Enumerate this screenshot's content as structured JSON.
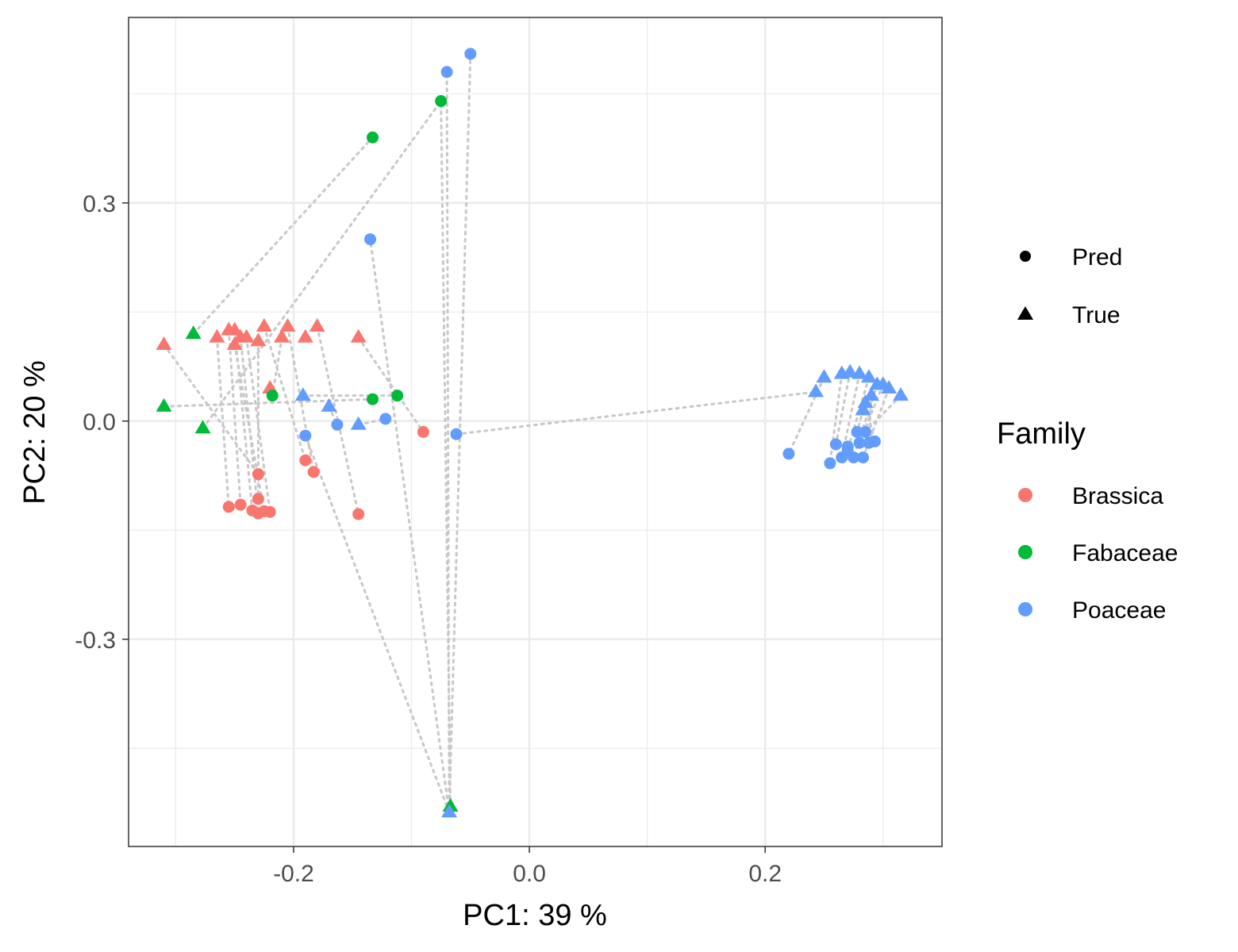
{
  "chart_data": {
    "type": "scatter",
    "xlabel": "PC1: 39 %",
    "ylabel": "PC2: 20 %",
    "xlim": [
      -0.34,
      0.35
    ],
    "ylim": [
      -0.585,
      0.555
    ],
    "x_ticks": [
      -0.2,
      0.0,
      0.2
    ],
    "y_ticks": [
      -0.3,
      0.0,
      0.3
    ],
    "x_tick_labels": [
      "-0.2",
      "0.0",
      "0.2"
    ],
    "y_tick_labels": [
      "-0.3",
      "0.0",
      "0.3"
    ],
    "grid": true,
    "legend_position": "right",
    "shape_legend": {
      "title": "",
      "entries": [
        {
          "label": "Pred",
          "shape": "circle"
        },
        {
          "label": "True",
          "shape": "triangle"
        }
      ]
    },
    "color_legend": {
      "title": "Family",
      "entries": [
        {
          "label": "Brassica",
          "color": "#F8766D"
        },
        {
          "label": "Fabaceae",
          "color": "#00BA38"
        },
        {
          "label": "Poaceae",
          "color": "#619CFF"
        }
      ]
    },
    "connector_color": "#c8c8c8",
    "series": [
      {
        "family": "Brassica",
        "type": "True",
        "color": "#F8766D",
        "shape": "triangle",
        "points": [
          [
            -0.31,
            0.105
          ],
          [
            -0.265,
            0.115
          ],
          [
            -0.255,
            0.125
          ],
          [
            -0.25,
            0.125
          ],
          [
            -0.245,
            0.115
          ],
          [
            -0.25,
            0.105
          ],
          [
            -0.24,
            0.115
          ],
          [
            -0.23,
            0.11
          ],
          [
            -0.225,
            0.13
          ],
          [
            -0.21,
            0.115
          ],
          [
            -0.205,
            0.13
          ],
          [
            -0.19,
            0.115
          ],
          [
            -0.18,
            0.13
          ],
          [
            -0.145,
            0.115
          ],
          [
            -0.22,
            0.045
          ]
        ]
      },
      {
        "family": "Brassica",
        "type": "Pred",
        "color": "#F8766D",
        "shape": "circle",
        "points": [
          [
            -0.23,
            -0.073
          ],
          [
            -0.255,
            -0.118
          ],
          [
            -0.245,
            -0.115
          ],
          [
            -0.235,
            -0.123
          ],
          [
            -0.23,
            -0.127
          ],
          [
            -0.225,
            -0.124
          ],
          [
            -0.22,
            -0.125
          ],
          [
            -0.23,
            -0.107
          ],
          [
            -0.19,
            -0.054
          ],
          [
            -0.183,
            -0.07
          ],
          [
            -0.145,
            -0.128
          ],
          [
            -0.09,
            -0.015
          ]
        ]
      },
      {
        "family": "Fabaceae",
        "type": "True",
        "color": "#00BA38",
        "shape": "triangle",
        "points": [
          [
            -0.31,
            0.02
          ],
          [
            -0.285,
            0.12
          ],
          [
            -0.277,
            -0.01
          ],
          [
            -0.067,
            -0.53
          ]
        ]
      },
      {
        "family": "Fabaceae",
        "type": "Pred",
        "color": "#00BA38",
        "shape": "circle",
        "points": [
          [
            -0.133,
            0.39
          ],
          [
            -0.075,
            0.44
          ],
          [
            -0.133,
            0.03
          ],
          [
            -0.112,
            0.035
          ],
          [
            -0.218,
            0.035
          ]
        ]
      },
      {
        "family": "Poaceae",
        "type": "True",
        "color": "#619CFF",
        "shape": "triangle",
        "points": [
          [
            -0.192,
            0.035
          ],
          [
            -0.17,
            0.02
          ],
          [
            -0.145,
            -0.005
          ],
          [
            -0.068,
            -0.538
          ],
          [
            0.243,
            0.04
          ],
          [
            0.25,
            0.06
          ],
          [
            0.265,
            0.065
          ],
          [
            0.272,
            0.067
          ],
          [
            0.28,
            0.065
          ],
          [
            0.288,
            0.06
          ],
          [
            0.295,
            0.05
          ],
          [
            0.3,
            0.05
          ],
          [
            0.305,
            0.045
          ],
          [
            0.315,
            0.035
          ],
          [
            0.29,
            0.035
          ],
          [
            0.285,
            0.025
          ],
          [
            0.283,
            0.015
          ]
        ]
      },
      {
        "family": "Poaceae",
        "type": "Pred",
        "color": "#619CFF",
        "shape": "circle",
        "points": [
          [
            -0.05,
            0.505
          ],
          [
            -0.07,
            0.48
          ],
          [
            -0.135,
            0.25
          ],
          [
            -0.19,
            -0.02
          ],
          [
            -0.163,
            -0.005
          ],
          [
            -0.122,
            0.003
          ],
          [
            -0.062,
            -0.018
          ],
          [
            0.22,
            -0.045
          ],
          [
            0.255,
            -0.058
          ],
          [
            0.26,
            -0.032
          ],
          [
            0.265,
            -0.05
          ],
          [
            0.27,
            -0.04
          ],
          [
            0.275,
            -0.05
          ],
          [
            0.28,
            -0.03
          ],
          [
            0.283,
            -0.05
          ],
          [
            0.285,
            -0.015
          ],
          [
            0.288,
            -0.03
          ],
          [
            0.293,
            -0.028
          ],
          [
            0.278,
            -0.015
          ],
          [
            0.27,
            -0.035
          ]
        ]
      }
    ],
    "connectors": [
      [
        [
          -0.31,
          0.105
        ],
        [
          -0.23,
          -0.073
        ]
      ],
      [
        [
          -0.265,
          0.115
        ],
        [
          -0.255,
          -0.118
        ]
      ],
      [
        [
          -0.255,
          0.125
        ],
        [
          -0.245,
          -0.115
        ]
      ],
      [
        [
          -0.25,
          0.125
        ],
        [
          -0.235,
          -0.123
        ]
      ],
      [
        [
          -0.245,
          0.115
        ],
        [
          -0.23,
          -0.127
        ]
      ],
      [
        [
          -0.25,
          0.105
        ],
        [
          -0.225,
          -0.124
        ]
      ],
      [
        [
          -0.24,
          0.115
        ],
        [
          -0.22,
          -0.125
        ]
      ],
      [
        [
          -0.23,
          0.11
        ],
        [
          -0.23,
          -0.107
        ]
      ],
      [
        [
          -0.225,
          0.13
        ],
        [
          -0.19,
          -0.054
        ]
      ],
      [
        [
          -0.205,
          0.13
        ],
        [
          -0.183,
          -0.07
        ]
      ],
      [
        [
          -0.18,
          0.13
        ],
        [
          -0.145,
          -0.128
        ]
      ],
      [
        [
          -0.145,
          0.115
        ],
        [
          -0.09,
          -0.015
        ]
      ],
      [
        [
          -0.285,
          0.12
        ],
        [
          -0.133,
          0.39
        ]
      ],
      [
        [
          -0.277,
          -0.01
        ],
        [
          -0.075,
          0.44
        ]
      ],
      [
        [
          -0.31,
          0.02
        ],
        [
          -0.133,
          0.03
        ]
      ],
      [
        [
          -0.192,
          0.035
        ],
        [
          -0.112,
          0.035
        ]
      ],
      [
        [
          -0.21,
          0.115
        ],
        [
          -0.218,
          0.035
        ]
      ],
      [
        [
          -0.067,
          -0.53
        ],
        [
          -0.075,
          0.44
        ]
      ],
      [
        [
          -0.068,
          -0.538
        ],
        [
          -0.05,
          0.505
        ]
      ],
      [
        [
          -0.068,
          -0.538
        ],
        [
          -0.07,
          0.48
        ]
      ],
      [
        [
          -0.068,
          -0.538
        ],
        [
          -0.135,
          0.25
        ]
      ],
      [
        [
          -0.068,
          -0.538
        ],
        [
          -0.19,
          -0.02
        ]
      ],
      [
        [
          -0.17,
          0.02
        ],
        [
          -0.163,
          -0.005
        ]
      ],
      [
        [
          -0.145,
          -0.005
        ],
        [
          -0.122,
          0.003
        ]
      ],
      [
        [
          -0.062,
          -0.018
        ],
        [
          0.243,
          0.04
        ]
      ],
      [
        [
          0.25,
          0.06
        ],
        [
          0.22,
          -0.045
        ]
      ],
      [
        [
          0.265,
          0.065
        ],
        [
          0.255,
          -0.058
        ]
      ],
      [
        [
          0.272,
          0.067
        ],
        [
          0.26,
          -0.032
        ]
      ],
      [
        [
          0.28,
          0.065
        ],
        [
          0.265,
          -0.05
        ]
      ],
      [
        [
          0.288,
          0.06
        ],
        [
          0.27,
          -0.04
        ]
      ],
      [
        [
          0.295,
          0.05
        ],
        [
          0.275,
          -0.05
        ]
      ],
      [
        [
          0.3,
          0.05
        ],
        [
          0.28,
          -0.03
        ]
      ],
      [
        [
          0.305,
          0.045
        ],
        [
          0.283,
          -0.05
        ]
      ],
      [
        [
          0.315,
          0.035
        ],
        [
          0.285,
          -0.015
        ]
      ],
      [
        [
          0.29,
          0.035
        ],
        [
          0.288,
          -0.03
        ]
      ],
      [
        [
          0.285,
          0.025
        ],
        [
          0.293,
          -0.028
        ]
      ],
      [
        [
          0.283,
          0.015
        ],
        [
          0.278,
          -0.015
        ]
      ]
    ]
  }
}
